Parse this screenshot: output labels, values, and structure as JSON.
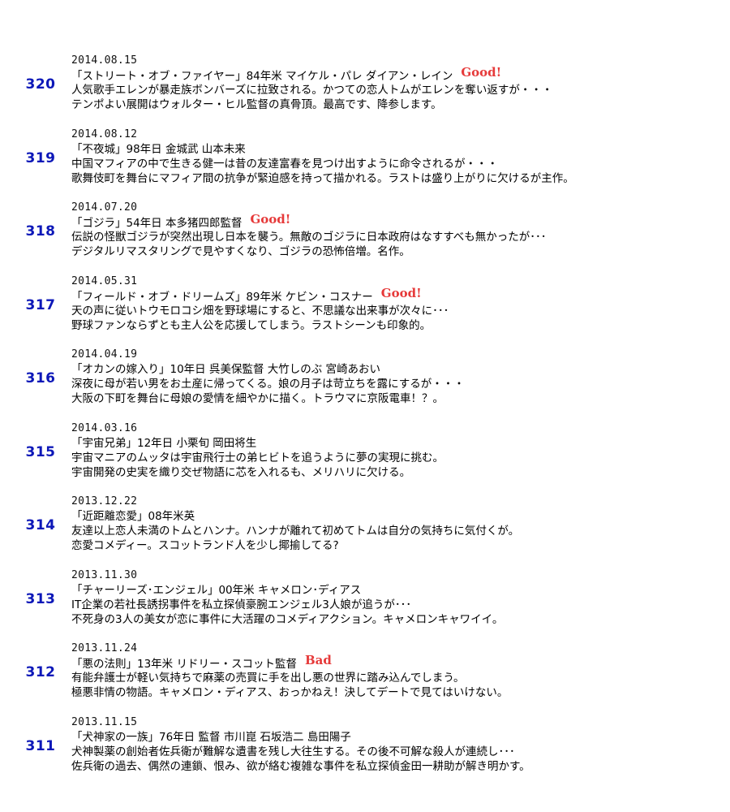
{
  "entries": [
    {
      "number": "320",
      "date": "2014.08.15",
      "title_line": "「ストリート・オブ・ファイヤー」84年米 マイケル・パレ ダイアン・レイン",
      "badge": "Good!",
      "lines": [
        "人気歌手エレンが暴走族ボンバーズに拉致される。かつての恋人トムがエレンを奪い返すが・・・",
        "テンポよい展開はウォルター・ヒル監督の真骨頂。最高です、降参します。"
      ]
    },
    {
      "number": "319",
      "date": "2014.08.12",
      "title_line": "「不夜城」98年日 金城武 山本未来",
      "badge": "",
      "lines": [
        "中国マフィアの中で生きる健一は昔の友達富春を見つけ出すように命令されるが・・・",
        "歌舞伎町を舞台にマフィア間の抗争が緊迫感を持って描かれる。ラストは盛り上がりに欠けるが主作。"
      ]
    },
    {
      "number": "318",
      "date": "2014.07.20",
      "title_line": "「ゴジラ」54年日 本多猪四郎監督",
      "badge": "Good!",
      "lines": [
        "伝説の怪獣ゴジラが突然出現し日本を襲う。無敵のゴジラに日本政府はなすすべも無かったが･･･",
        "デジタルリマスタリングで見やすくなり、ゴジラの恐怖倍増。名作。"
      ]
    },
    {
      "number": "317",
      "date": "2014.05.31",
      "title_line": "「フィールド・オブ・ドリームズ」89年米 ケビン・コスナー",
      "badge": "Good!",
      "lines": [
        "天の声に従いトウモロコシ畑を野球場にすると、不思議な出来事が次々に･･･",
        "野球ファンならずとも主人公を応援してしまう。ラストシーンも印象的。"
      ]
    },
    {
      "number": "316",
      "date": "2014.04.19",
      "title_line": "「オカンの嫁入り」10年日 呉美保監督 大竹しのぶ 宮崎あおい",
      "badge": "",
      "lines": [
        "深夜に母が若い男をお土産に帰ってくる。娘の月子は苛立ちを露にするが・・・",
        "大阪の下町を舞台に母娘の愛情を細やかに描く。トラウマに京阪電車！？。"
      ]
    },
    {
      "number": "315",
      "date": "2014.03.16",
      "title_line": "「宇宙兄弟」12年日 小栗旬 岡田将生",
      "badge": "",
      "lines": [
        "宇宙マニアのムッタは宇宙飛行士の弟ヒビトを追うように夢の実現に挑む。",
        "宇宙開発の史実を織り交ぜ物語に芯を入れるも、メリハリに欠ける。"
      ]
    },
    {
      "number": "314",
      "date": "2013.12.22",
      "title_line": "「近距離恋愛」08年米英",
      "badge": "",
      "lines": [
        "友達以上恋人未満のトムとハンナ。ハンナが離れて初めてトムは自分の気持ちに気付くが。",
        "恋愛コメディー。スコットランド人を少し揶揄してる?"
      ]
    },
    {
      "number": "313",
      "date": "2013.11.30",
      "title_line": "「チャーリーズ･エンジェル」00年米 キャメロン･ディアス",
      "badge": "",
      "lines": [
        "IT企業の若社長誘拐事件を私立探偵豪腕エンジェル3人娘が追うが･･･",
        "不死身の3人の美女が恋に事件に大活躍のコメディアクション。キャメロンキャワイイ。"
      ]
    },
    {
      "number": "312",
      "date": "2013.11.24",
      "title_line": "「悪の法則」13年米 リドリー・スコット監督",
      "badge": "Bad",
      "lines": [
        "有能弁護士が軽い気持ちで麻薬の売買に手を出し悪の世界に踏み込んでしまう。",
        "極悪非情の物語。キャメロン・ディアス、おっかねえ！決してデートで見てはいけない。"
      ]
    },
    {
      "number": "311",
      "date": "2013.11.15",
      "title_line": "「犬神家の一族」76年日 監督 市川崑 石坂浩二 島田陽子",
      "badge": "",
      "lines": [
        "犬神製薬の創始者佐兵衛が難解な遺書を残し大往生する。その後不可解な殺人が連続し･･･",
        "佐兵衛の過去、偶然の連鎖、恨み、欲が絡む複雑な事件を私立探偵金田一耕助が解き明かす。"
      ]
    }
  ]
}
